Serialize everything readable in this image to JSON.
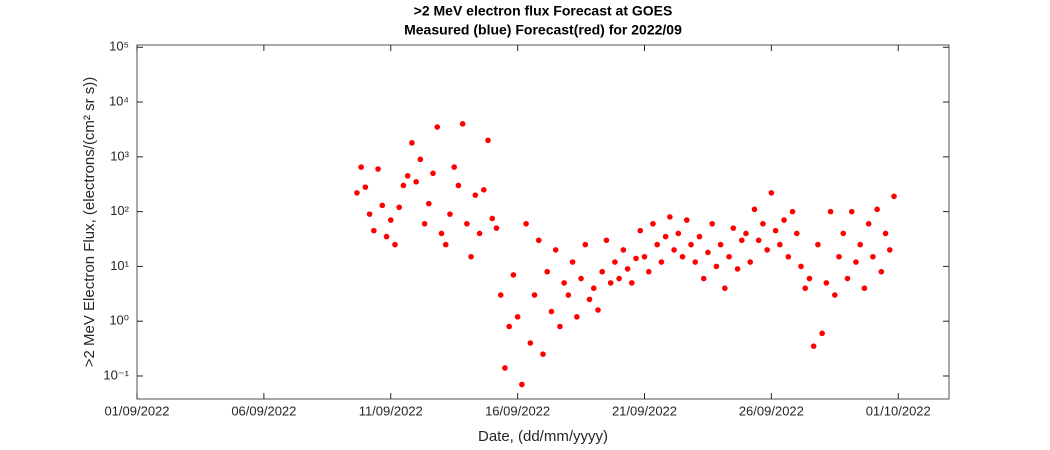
{
  "chart_data": {
    "type": "scatter",
    "title": ">2 MeV electron flux Forecast at GOES",
    "subtitle": "Measured (blue) Forecast(red) for 2022/09",
    "xlabel": "Date, (dd/mm/yyyy)",
    "ylabel": ">2 MeV Electron Flux, (electrons/(cm² sr s))",
    "log_y": true,
    "color": "#ff0000",
    "xlim": [
      "2022-09-01T00:00",
      "2022-10-03T00:00"
    ],
    "xticks": [
      {
        "value": "2022-09-01T00:00",
        "label": "01/09/2022"
      },
      {
        "value": "2022-09-06T00:00",
        "label": "06/09/2022"
      },
      {
        "value": "2022-09-11T00:00",
        "label": "11/09/2022"
      },
      {
        "value": "2022-09-16T00:00",
        "label": "16/09/2022"
      },
      {
        "value": "2022-09-21T00:00",
        "label": "21/09/2022"
      },
      {
        "value": "2022-09-26T00:00",
        "label": "26/09/2022"
      },
      {
        "value": "2022-10-01T00:00",
        "label": "01/10/2022"
      }
    ],
    "ylim": [
      0.038,
      110000
    ],
    "yticks": [
      {
        "value": 0.1,
        "label": "10⁻¹"
      },
      {
        "value": 1,
        "label": "10⁰"
      },
      {
        "value": 10,
        "label": "10¹"
      },
      {
        "value": 100,
        "label": "10²"
      },
      {
        "value": 1000,
        "label": "10³"
      },
      {
        "value": 10000,
        "label": "10⁴"
      },
      {
        "value": 100000,
        "label": "10⁵"
      }
    ],
    "x": [
      "2022-09-09T16:00",
      "2022-09-09T20:00",
      "2022-09-10T00:00",
      "2022-09-10T04:00",
      "2022-09-10T08:00",
      "2022-09-10T12:00",
      "2022-09-10T16:00",
      "2022-09-10T20:00",
      "2022-09-11T00:00",
      "2022-09-11T04:00",
      "2022-09-11T08:00",
      "2022-09-11T12:00",
      "2022-09-11T16:00",
      "2022-09-11T20:00",
      "2022-09-12T00:00",
      "2022-09-12T04:00",
      "2022-09-12T08:00",
      "2022-09-12T12:00",
      "2022-09-12T16:00",
      "2022-09-12T20:00",
      "2022-09-13T00:00",
      "2022-09-13T04:00",
      "2022-09-13T08:00",
      "2022-09-13T12:00",
      "2022-09-13T16:00",
      "2022-09-13T20:00",
      "2022-09-14T00:00",
      "2022-09-14T04:00",
      "2022-09-14T08:00",
      "2022-09-14T12:00",
      "2022-09-14T16:00",
      "2022-09-14T20:00",
      "2022-09-15T00:00",
      "2022-09-15T04:00",
      "2022-09-15T08:00",
      "2022-09-15T12:00",
      "2022-09-15T16:00",
      "2022-09-15T20:00",
      "2022-09-16T00:00",
      "2022-09-16T04:00",
      "2022-09-16T08:00",
      "2022-09-16T12:00",
      "2022-09-16T16:00",
      "2022-09-16T20:00",
      "2022-09-17T00:00",
      "2022-09-17T04:00",
      "2022-09-17T08:00",
      "2022-09-17T12:00",
      "2022-09-17T16:00",
      "2022-09-17T20:00",
      "2022-09-18T00:00",
      "2022-09-18T04:00",
      "2022-09-18T08:00",
      "2022-09-18T12:00",
      "2022-09-18T16:00",
      "2022-09-18T20:00",
      "2022-09-19T00:00",
      "2022-09-19T04:00",
      "2022-09-19T08:00",
      "2022-09-19T12:00",
      "2022-09-19T16:00",
      "2022-09-19T20:00",
      "2022-09-20T00:00",
      "2022-09-20T04:00",
      "2022-09-20T08:00",
      "2022-09-20T12:00",
      "2022-09-20T16:00",
      "2022-09-20T20:00",
      "2022-09-21T00:00",
      "2022-09-21T04:00",
      "2022-09-21T08:00",
      "2022-09-21T12:00",
      "2022-09-21T16:00",
      "2022-09-21T20:00",
      "2022-09-22T00:00",
      "2022-09-22T04:00",
      "2022-09-22T08:00",
      "2022-09-22T12:00",
      "2022-09-22T16:00",
      "2022-09-22T20:00",
      "2022-09-23T00:00",
      "2022-09-23T04:00",
      "2022-09-23T08:00",
      "2022-09-23T12:00",
      "2022-09-23T16:00",
      "2022-09-23T20:00",
      "2022-09-24T00:00",
      "2022-09-24T04:00",
      "2022-09-24T08:00",
      "2022-09-24T12:00",
      "2022-09-24T16:00",
      "2022-09-24T20:00",
      "2022-09-25T00:00",
      "2022-09-25T04:00",
      "2022-09-25T08:00",
      "2022-09-25T12:00",
      "2022-09-25T16:00",
      "2022-09-25T20:00",
      "2022-09-26T00:00",
      "2022-09-26T04:00",
      "2022-09-26T08:00",
      "2022-09-26T12:00",
      "2022-09-26T16:00",
      "2022-09-26T20:00",
      "2022-09-27T00:00",
      "2022-09-27T04:00",
      "2022-09-27T08:00",
      "2022-09-27T12:00",
      "2022-09-27T16:00",
      "2022-09-27T20:00",
      "2022-09-28T00:00",
      "2022-09-28T04:00",
      "2022-09-28T08:00",
      "2022-09-28T12:00",
      "2022-09-28T16:00",
      "2022-09-28T20:00",
      "2022-09-29T00:00",
      "2022-09-29T04:00",
      "2022-09-29T08:00",
      "2022-09-29T12:00",
      "2022-09-29T16:00",
      "2022-09-29T20:00",
      "2022-09-30T00:00",
      "2022-09-30T04:00",
      "2022-09-30T08:00",
      "2022-09-30T12:00",
      "2022-09-30T16:00",
      "2022-09-30T20:00"
    ],
    "values": [
      220,
      650,
      280,
      90,
      45,
      600,
      130,
      35,
      70,
      25,
      120,
      300,
      450,
      1800,
      350,
      900,
      60,
      140,
      500,
      3500,
      40,
      25,
      90,
      650,
      300,
      4000,
      60,
      15,
      200,
      40,
      250,
      2000,
      75,
      50,
      3,
      0.14,
      0.8,
      7,
      1.2,
      0.07,
      60,
      0.4,
      3,
      30,
      0.25,
      8,
      1.5,
      20,
      0.8,
      5,
      3,
      12,
      1.2,
      6,
      25,
      2.5,
      4,
      1.6,
      8,
      30,
      5,
      12,
      6,
      20,
      9,
      5,
      14,
      45,
      15,
      8,
      60,
      25,
      12,
      35,
      80,
      20,
      40,
      15,
      70,
      25,
      12,
      35,
      6,
      18,
      60,
      10,
      25,
      4,
      15,
      50,
      9,
      30,
      40,
      12,
      110,
      30,
      60,
      20,
      220,
      45,
      25,
      70,
      15,
      100,
      40,
      10,
      4,
      6,
      0.35,
      25,
      0.6,
      5,
      100,
      3,
      15,
      40,
      6,
      100,
      12,
      25,
      4,
      60,
      15,
      110,
      8,
      40,
      20,
      190
    ]
  }
}
